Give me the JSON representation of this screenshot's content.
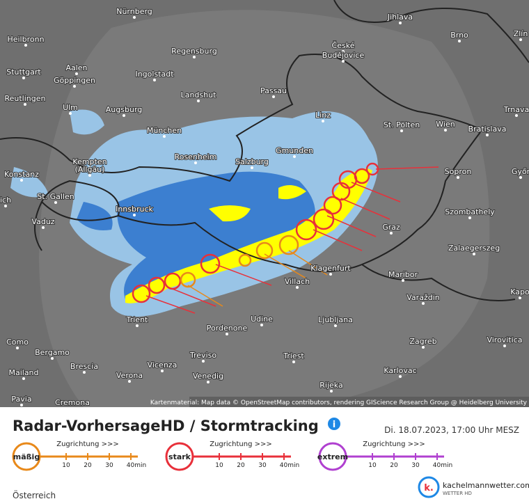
{
  "map": {
    "cities": [
      "Nürnberg",
      "Jihlava",
      "Heilbronn",
      "Regensburg",
      "České",
      "Budějovice",
      "Brno",
      "Zlín",
      "Stuttgart",
      "Aalen",
      "Göppingen",
      "Ingolstadt",
      "Passau",
      "Reutlingen",
      "Landshut",
      "Ulm",
      "Augsburg",
      "Linz",
      "St. Pölten",
      "Wien",
      "Bratislava",
      "Trnava",
      "München",
      "Kempten",
      "(Allgäu)",
      "Rosenheim",
      "Salzburg",
      "Gmunden",
      "Sopron",
      "Győr",
      "Konstanz",
      "St. Gallen",
      "ich",
      "Innsbruck",
      "Vaduz",
      "Szombathely",
      "Graz",
      "Zalaegerszeg",
      "Klagenfurt",
      "Villach",
      "Maribor",
      "Kapo",
      "Varaždin",
      "Trient",
      "Udine",
      "Ljubljana",
      "Pordenone",
      "Como",
      "Zagreb",
      "Virovitica",
      "Bergamo",
      "Treviso",
      "Triest",
      "Brescia",
      "Mailand",
      "Vicenza",
      "Karlovac",
      "Verona",
      "Venedig",
      "Rijeka",
      "Pavia",
      "Cremona"
    ],
    "attribution": "Kartenmaterial: Map data © OpenStreetMap contributors, rendering GIScience Research Group @ Heidelberg University"
  },
  "header": {
    "title": "Radar-VorhersageHD / Stormtracking",
    "date": "Di. 18.07.2023, 17:00 Uhr MESZ"
  },
  "legend": [
    {
      "label": "mäßig",
      "direction": "Zugrichtung >>>",
      "ticks": [
        "10",
        "20",
        "30",
        "40min"
      ]
    },
    {
      "label": "stark",
      "direction": "Zugrichtung >>>",
      "ticks": [
        "10",
        "20",
        "30",
        "40min"
      ]
    },
    {
      "label": "extrem",
      "direction": "Zugrichtung >>>",
      "ticks": [
        "10",
        "20",
        "30",
        "40min"
      ]
    }
  ],
  "footer": {
    "region": "Österreich",
    "brand": "kachelmannwetter.com",
    "brand_sub": "WETTER HD",
    "logo": "k."
  }
}
